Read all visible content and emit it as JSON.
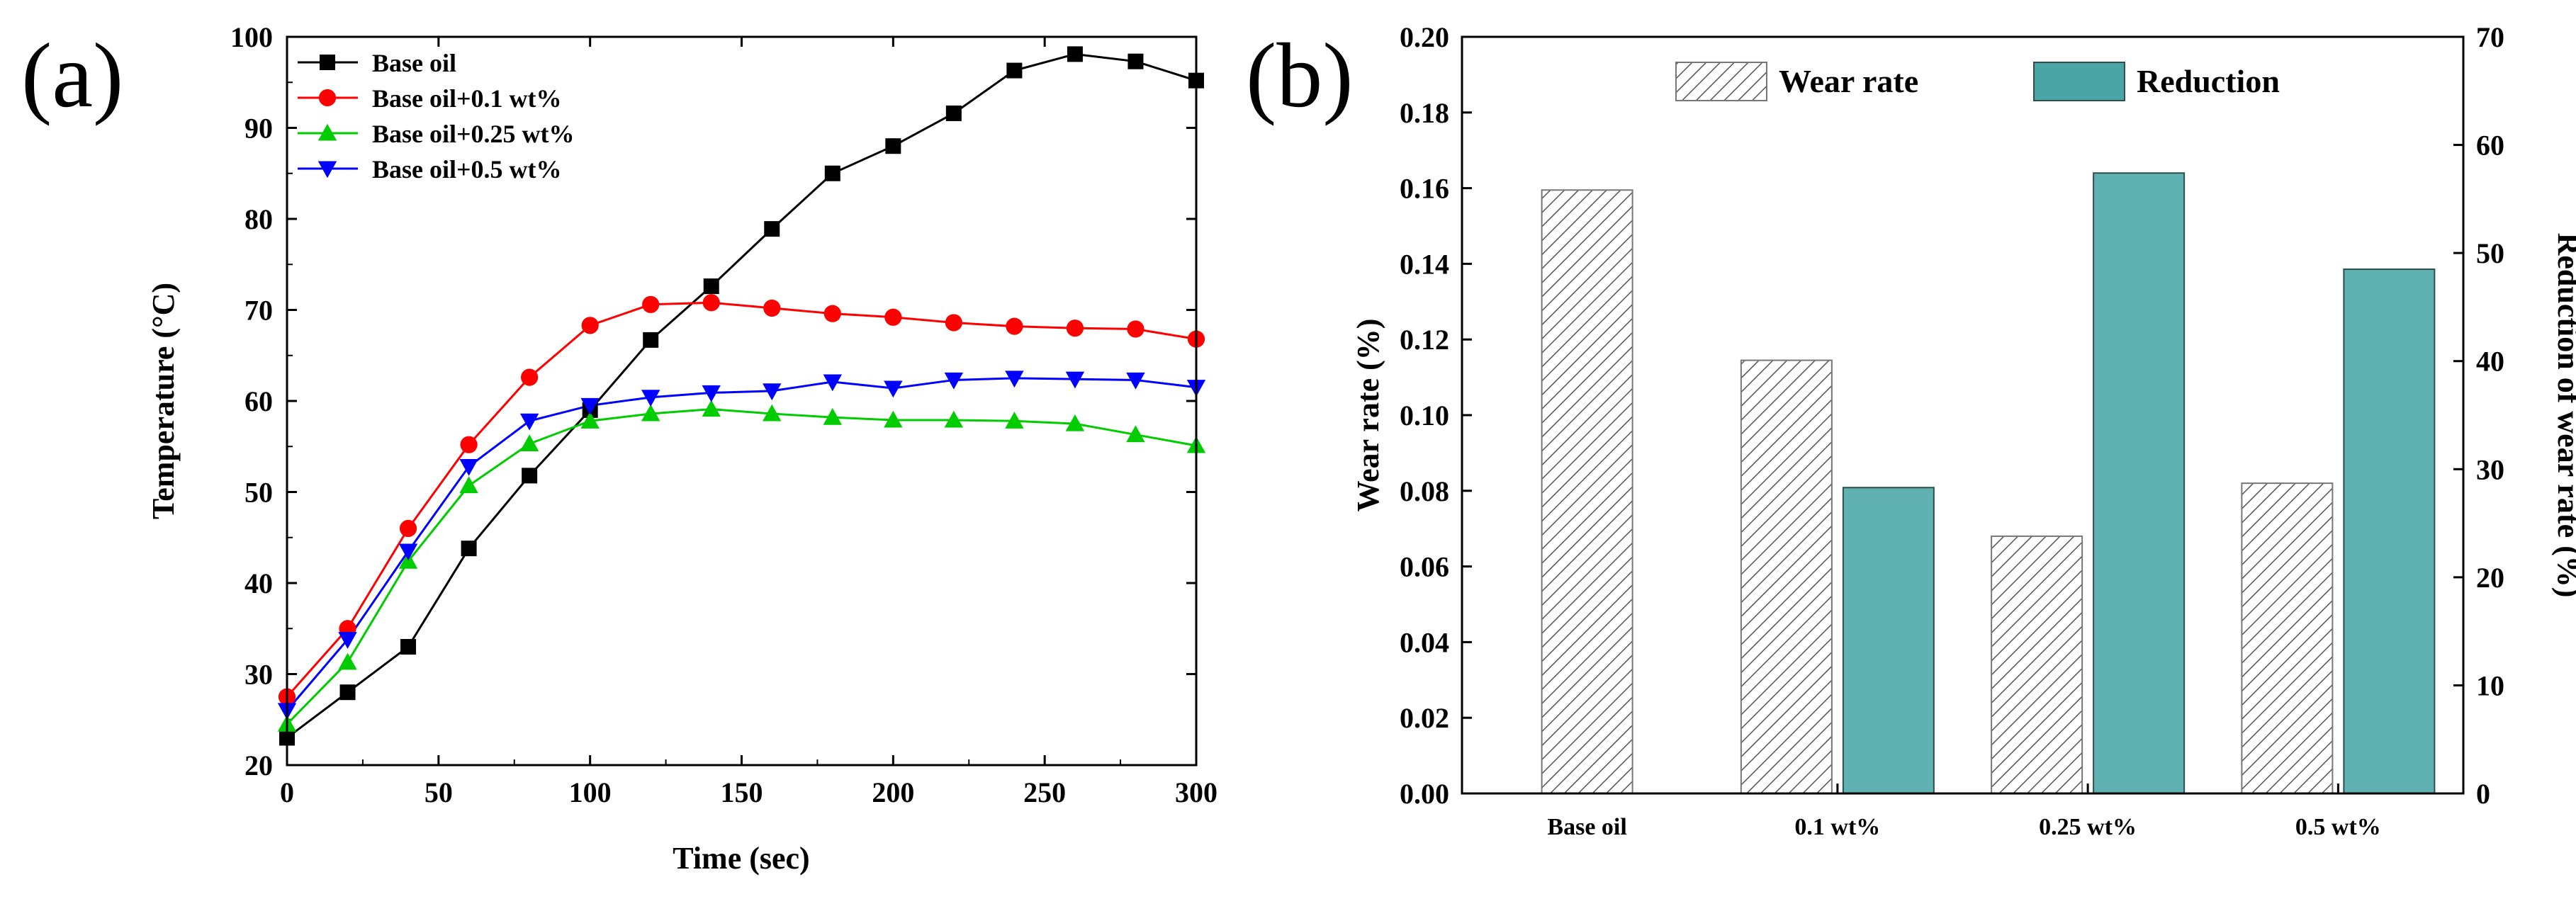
{
  "chart_data": [
    {
      "panel_label": "(a)",
      "type": "line",
      "title": "",
      "xlabel": "Time (sec)",
      "ylabel": "Temperature (°C)",
      "xlim": [
        0,
        300
      ],
      "ylim": [
        20,
        100
      ],
      "xticks": [
        "0",
        "50",
        "100",
        "150",
        "200",
        "250",
        "300"
      ],
      "yticks": [
        "20",
        "30",
        "40",
        "50",
        "60",
        "70",
        "80",
        "90",
        "100"
      ],
      "legend_position": "top-left",
      "x": [
        0,
        20,
        40,
        60,
        80,
        100,
        120,
        140,
        160,
        180,
        200,
        220,
        240,
        260,
        280,
        300
      ],
      "series": [
        {
          "name": "Base oil",
          "color": "#000000",
          "marker": "square",
          "values": [
            23,
            28,
            33,
            43.8,
            51.8,
            59,
            66.7,
            72.6,
            78.9,
            85,
            88,
            91.6,
            96.3,
            98.1,
            97.3,
            95.2
          ]
        },
        {
          "name": "Base oil+0.1 wt%",
          "color": "#ff0000",
          "marker": "circle",
          "values": [
            27.5,
            35,
            46,
            55.2,
            62.6,
            68.3,
            70.6,
            70.8,
            70.2,
            69.6,
            69.2,
            68.6,
            68.2,
            68,
            67.9,
            66.8
          ]
        },
        {
          "name": "Base oil+0.25 wt%",
          "color": "#00cc00",
          "marker": "triangle-up",
          "values": [
            24.5,
            31.3,
            42.4,
            50.7,
            55.3,
            57.8,
            58.6,
            59.1,
            58.6,
            58.2,
            57.9,
            57.9,
            57.8,
            57.5,
            56.3,
            55.1
          ]
        },
        {
          "name": "Base oil+0.5 wt%",
          "color": "#0000ff",
          "marker": "triangle-down",
          "values": [
            26,
            33.8,
            43.5,
            52.8,
            57.8,
            59.5,
            60.4,
            60.9,
            61.1,
            62.1,
            61.4,
            62.3,
            62.5,
            62.4,
            62.3,
            61.5
          ]
        }
      ]
    },
    {
      "panel_label": "(b)",
      "type": "bar",
      "title": "",
      "xlabel": "",
      "ylabel": "Wear rate (%)",
      "y2label": "Reduction of  wear rate (%)",
      "ylim": [
        0,
        0.2
      ],
      "y2lim": [
        0,
        70
      ],
      "yticks": [
        "0.00",
        "0.02",
        "0.04",
        "0.06",
        "0.08",
        "0.10",
        "0.12",
        "0.14",
        "0.16",
        "0.18",
        "0.20"
      ],
      "y2ticks": [
        "0",
        "10",
        "20",
        "30",
        "40",
        "50",
        "60",
        "70"
      ],
      "categories": [
        "Base oil",
        "0.1 wt%",
        "0.25 wt%",
        "0.5 wt%"
      ],
      "legend_position": "top-center",
      "series": [
        {
          "name": "Wear rate",
          "axis": "left",
          "style": "hatched",
          "values": [
            0.1595,
            0.1145,
            0.068,
            0.082
          ]
        },
        {
          "name": "Reduction",
          "axis": "right",
          "color": "#4aa6a6",
          "values": [
            0,
            28.3,
            57.4,
            48.5
          ]
        }
      ]
    }
  ]
}
